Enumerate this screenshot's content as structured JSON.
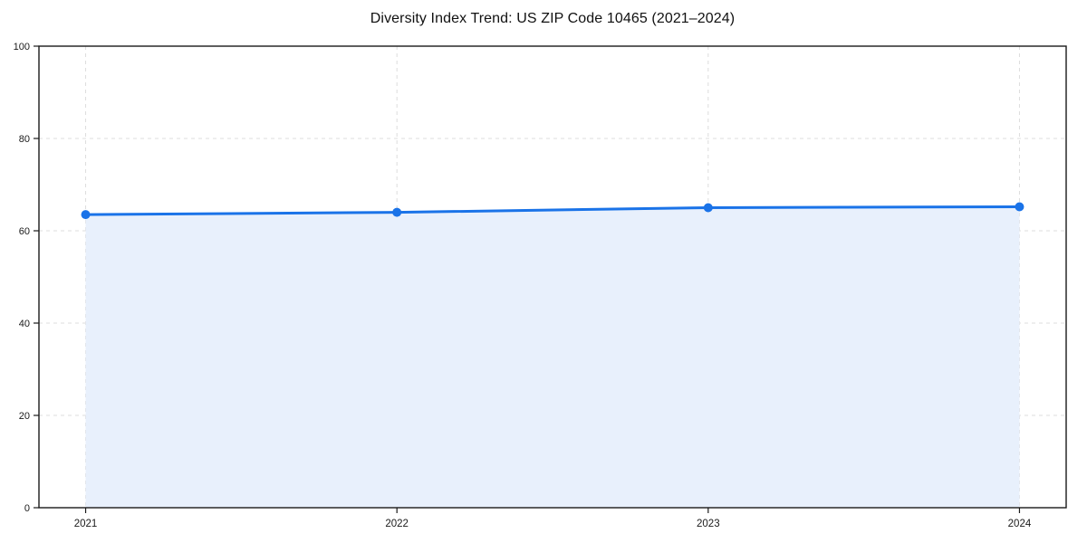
{
  "title": "Diversity Index Trend: US ZIP Code 10465 (2021–2024)",
  "chart_data": {
    "type": "area",
    "title": "Diversity Index Trend: US ZIP Code 10465 (2021–2024)",
    "categories": [
      "2021",
      "2022",
      "2023",
      "2024"
    ],
    "series": [
      {
        "name": "Diversity Index",
        "values": [
          63.5,
          64.0,
          65.0,
          65.2
        ]
      }
    ],
    "xlabel": "",
    "ylabel": "",
    "ylim": [
      0,
      100
    ],
    "yticks": [
      0,
      20,
      40,
      60,
      80,
      100
    ],
    "x_margin_fraction": 0.05,
    "grid": true,
    "grid_style": "dashed",
    "legend_position": "none",
    "colors": {
      "line": "#1a73e8",
      "marker": "#1a73e8",
      "fill": "#e8f0fc",
      "grid": "#dcdcdc",
      "spine": "#1a1a1a",
      "tick": "#1a1a1a",
      "tick_label": "#1a1a1a",
      "background": "#ffffff"
    }
  }
}
